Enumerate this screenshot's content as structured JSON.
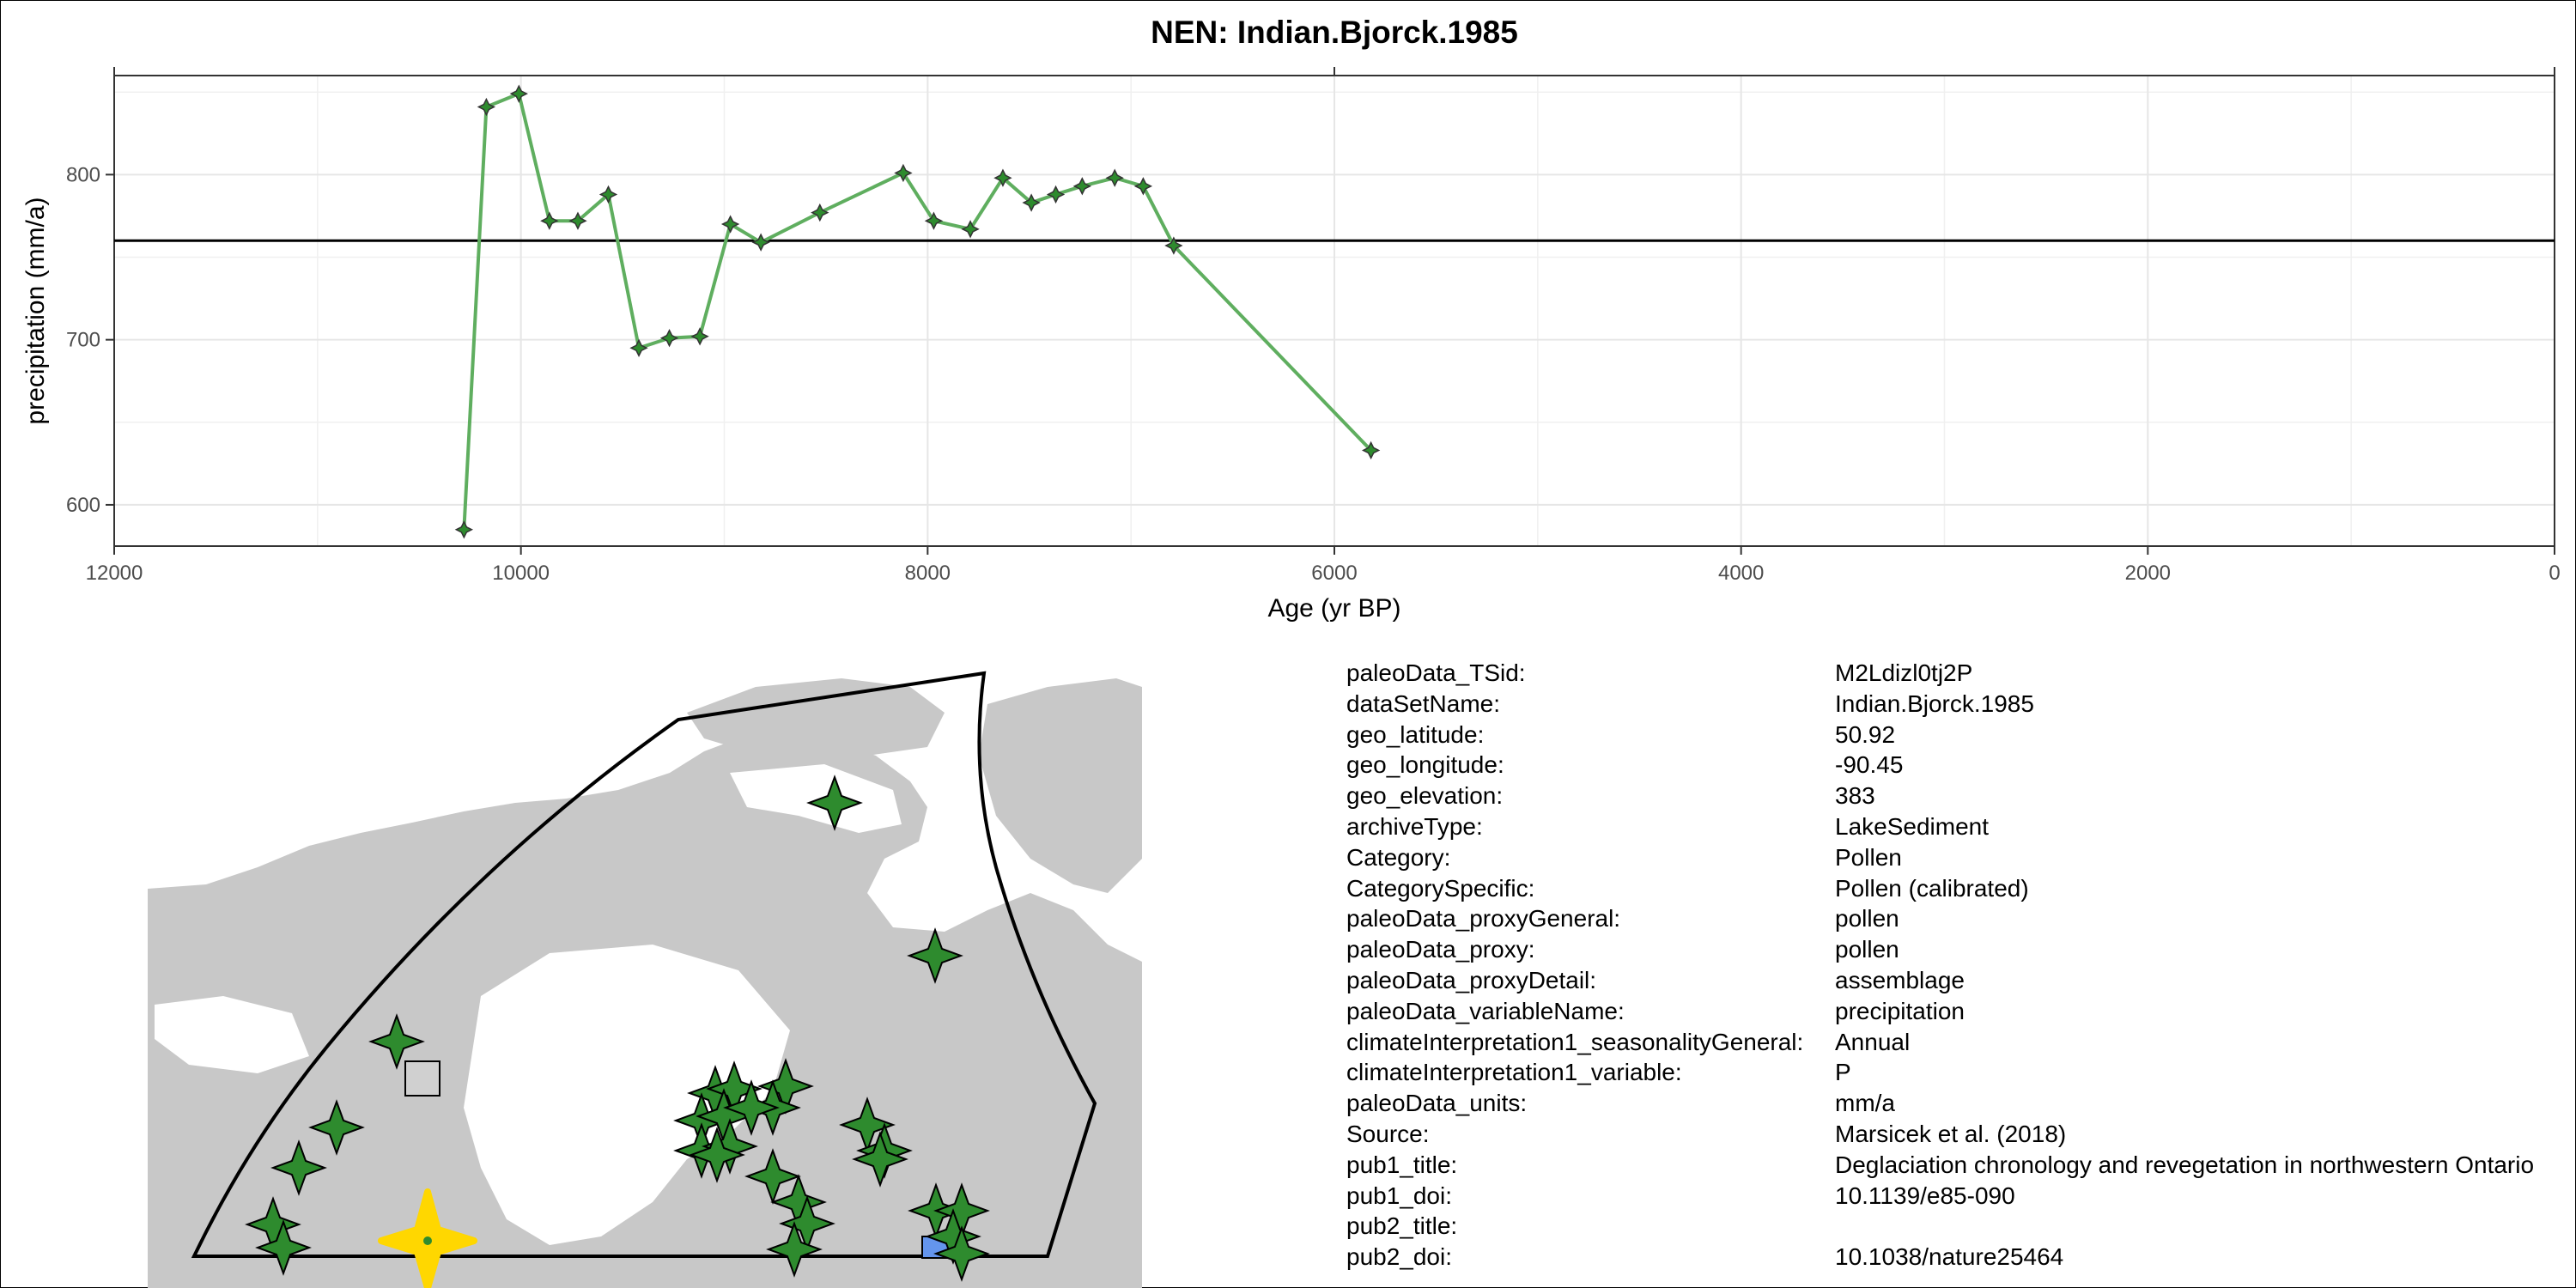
{
  "chart_data": {
    "type": "line",
    "title": "NEN: Indian.Bjorck.1985",
    "xlabel": "Age (yr BP)",
    "ylabel": "precipitation (mm/a)",
    "xlim": [
      12000,
      0
    ],
    "ylim": [
      575,
      860
    ],
    "x_reversed": true,
    "x_ticks": [
      12000,
      10000,
      8000,
      6000,
      4000,
      2000,
      0
    ],
    "x_tick_labels": [
      "12000",
      "10000",
      "8000",
      "6000",
      "4000",
      "2000",
      "0"
    ],
    "y_ticks": [
      600,
      700,
      800
    ],
    "y_tick_labels": [
      "600",
      "700",
      "800"
    ],
    "grid": true,
    "reference_line": 760,
    "line_color": "#5FAE5F",
    "marker_color": "#2E8B2E",
    "series": [
      {
        "x": [
          10280,
          10170,
          10010,
          9860,
          9720,
          9570,
          9420,
          9270,
          9120,
          8970,
          8820,
          8530,
          8120,
          7970,
          7790,
          7630,
          7490,
          7370,
          7240,
          7080,
          6940,
          6790,
          5820
        ],
        "y": [
          585,
          841,
          849,
          772,
          772,
          788,
          695,
          701,
          702,
          770,
          759,
          777,
          801,
          772,
          767,
          798,
          783,
          788,
          793,
          798,
          793,
          757,
          633
        ]
      }
    ]
  },
  "map": {
    "land_color": "#C8C8C8",
    "marker_color": "#2E8B2E",
    "highlight_color": "#FFD700"
  },
  "metadata": [
    {
      "key": "paleoData_TSid:",
      "value": "M2Ldizl0tj2P"
    },
    {
      "key": "dataSetName:",
      "value": "Indian.Bjorck.1985"
    },
    {
      "key": "geo_latitude:",
      "value": "50.92"
    },
    {
      "key": "geo_longitude:",
      "value": "-90.45"
    },
    {
      "key": "geo_elevation:",
      "value": "383"
    },
    {
      "key": "archiveType:",
      "value": "LakeSediment"
    },
    {
      "key": "Category:",
      "value": "Pollen"
    },
    {
      "key": "CategorySpecific:",
      "value": "Pollen (calibrated)"
    },
    {
      "key": "paleoData_proxyGeneral:",
      "value": "pollen"
    },
    {
      "key": "paleoData_proxy:",
      "value": "pollen"
    },
    {
      "key": "paleoData_proxyDetail:",
      "value": "assemblage"
    },
    {
      "key": "paleoData_variableName:",
      "value": "precipitation"
    },
    {
      "key": "climateInterpretation1_seasonalityGeneral:",
      "value": "Annual"
    },
    {
      "key": "climateInterpretation1_variable:",
      "value": "P"
    },
    {
      "key": "paleoData_units:",
      "value": "mm/a"
    },
    {
      "key": "Source:",
      "value": "Marsicek et al. (2018)"
    },
    {
      "key": "pub1_title:",
      "value": "Deglaciation chronology and revegetation in northwestern Ontario"
    },
    {
      "key": "pub1_doi:",
      "value": "10.1139/e85-090"
    },
    {
      "key": "pub2_title:",
      "value": ""
    },
    {
      "key": "pub2_doi:",
      "value": "10.1038/nature25464"
    }
  ]
}
